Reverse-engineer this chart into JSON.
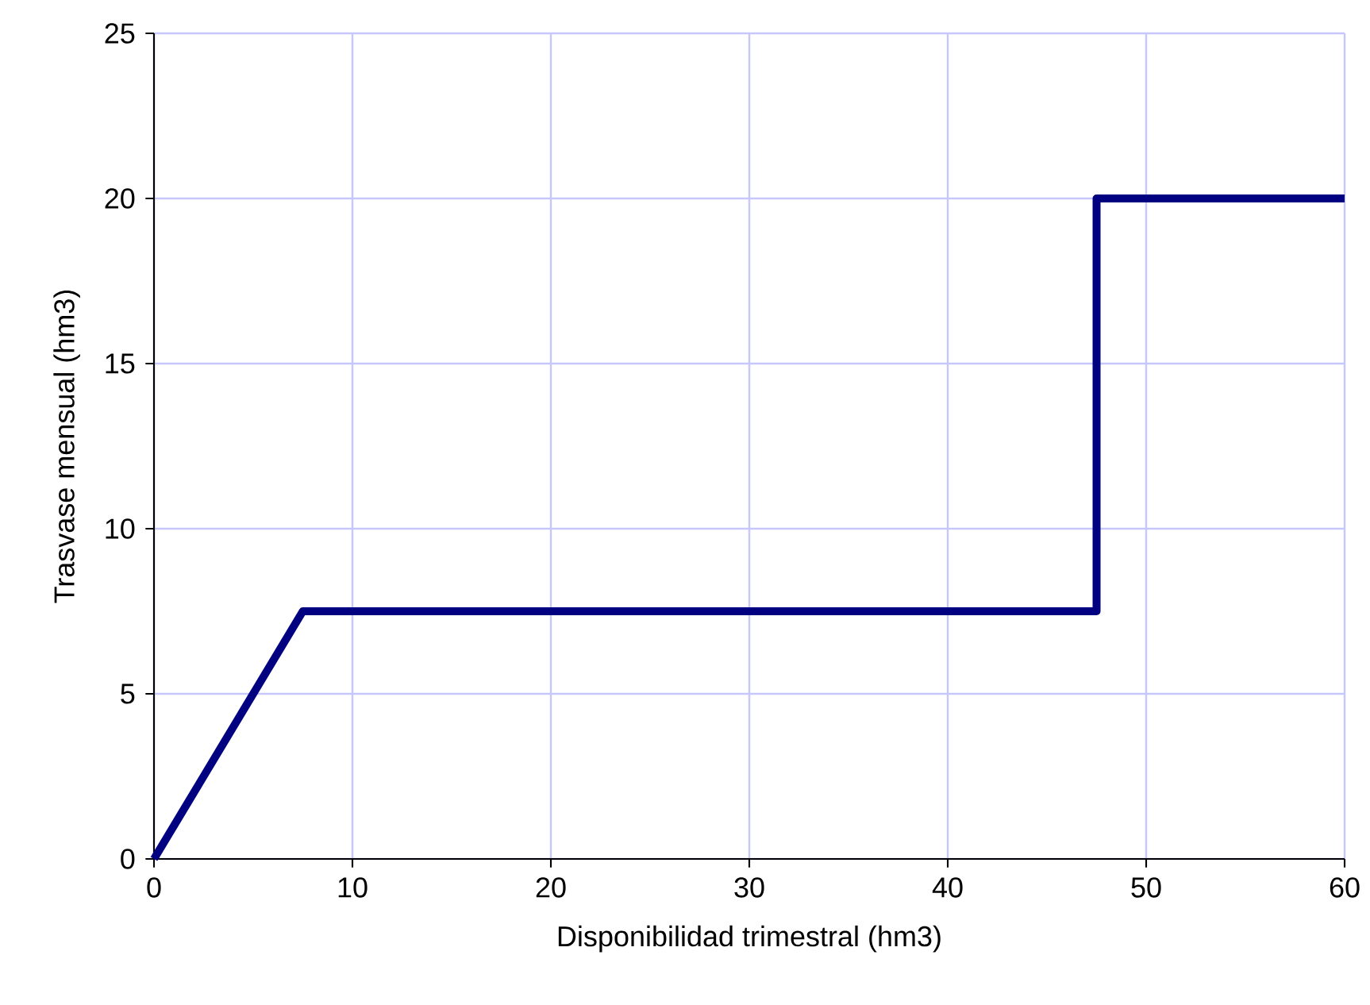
{
  "chart_data": {
    "type": "line",
    "xlabel": "Disponibilidad trimestral (hm3)",
    "ylabel": "Trasvase mensual (hm3)",
    "x": [
      0,
      7.5,
      47.5,
      47.5,
      60
    ],
    "series": [
      {
        "color": "#000080",
        "values": [
          0,
          7.5,
          7.5,
          20,
          20
        ]
      }
    ],
    "xlim": [
      0,
      60
    ],
    "ylim": [
      0,
      25
    ],
    "xticks": [
      0,
      10,
      20,
      30,
      40,
      50,
      60
    ],
    "yticks": [
      0,
      5,
      10,
      15,
      20,
      25
    ],
    "grid": true,
    "marker": "none",
    "line_style": "solid"
  }
}
